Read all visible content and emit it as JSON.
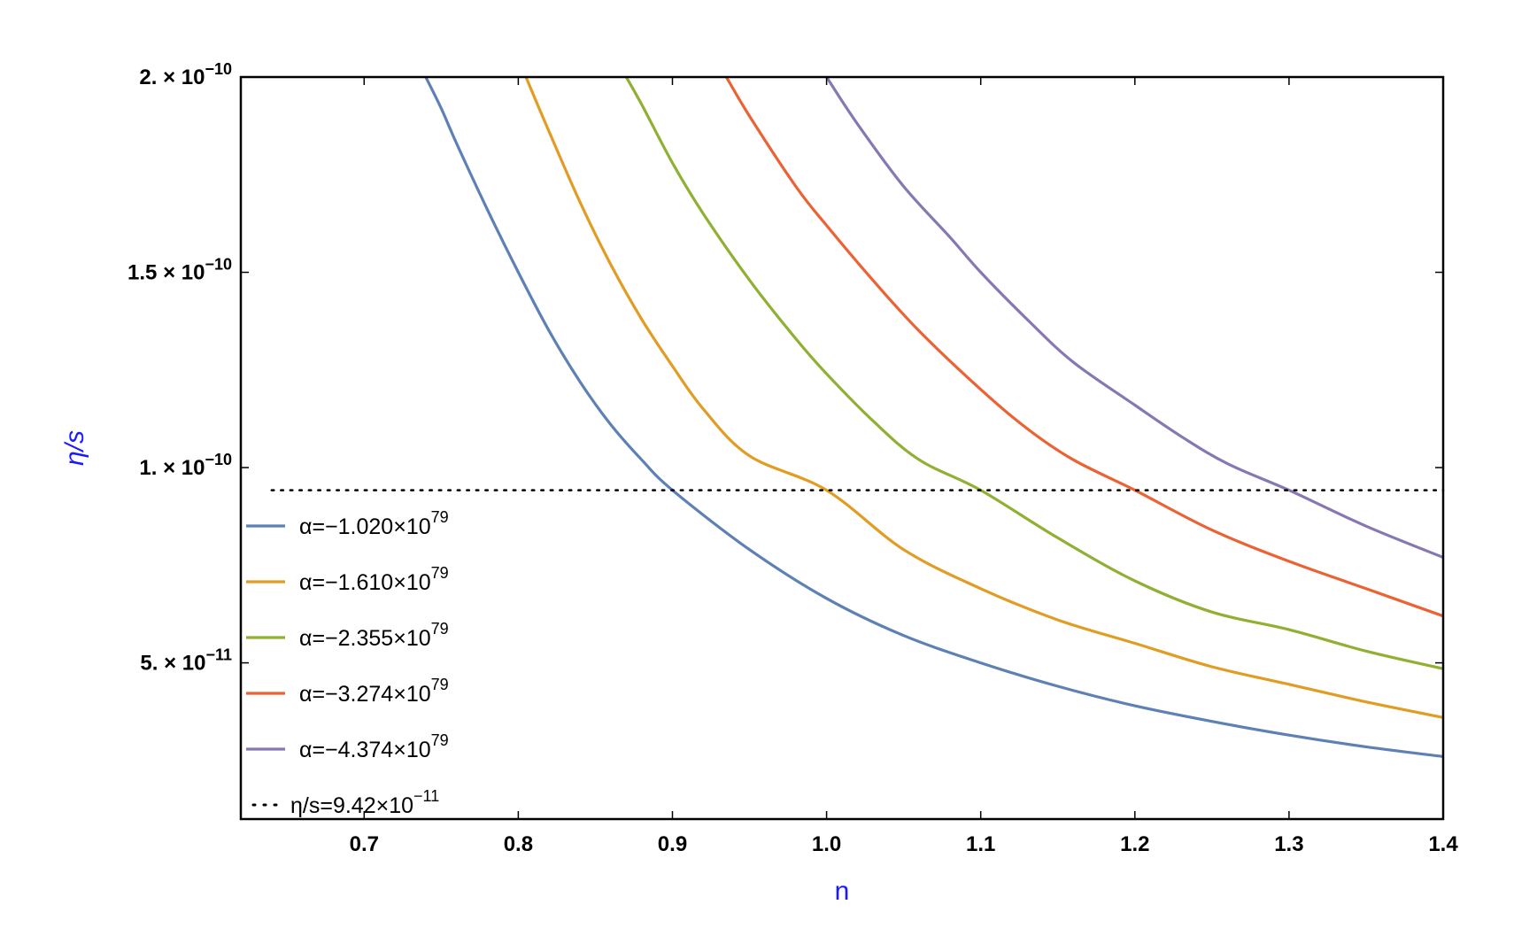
{
  "chart_data": {
    "type": "line",
    "title": "",
    "xlabel": "n",
    "ylabel": "η/s",
    "xlim": [
      0.62,
      1.4
    ],
    "ylim": [
      1e-11,
      2e-10
    ],
    "x_ticks": [
      {
        "value": 0.7,
        "label": "0.7"
      },
      {
        "value": 0.8,
        "label": "0.8"
      },
      {
        "value": 0.9,
        "label": "0.9"
      },
      {
        "value": 1.0,
        "label": "1.0"
      },
      {
        "value": 1.1,
        "label": "1.1"
      },
      {
        "value": 1.2,
        "label": "1.2"
      },
      {
        "value": 1.3,
        "label": "1.3"
      },
      {
        "value": 1.4,
        "label": "1.4"
      }
    ],
    "y_ticks": [
      {
        "value": 5e-11,
        "mantissa": "5.",
        "times": "×",
        "base": "10",
        "exponent": "−11"
      },
      {
        "value": 1e-10,
        "mantissa": "1.",
        "times": "×",
        "base": "10",
        "exponent": "−10"
      },
      {
        "value": 1.5e-10,
        "mantissa": "1.5",
        "times": "×",
        "base": "10",
        "exponent": "−10"
      },
      {
        "value": 2e-10,
        "mantissa": "2.",
        "times": "×",
        "base": "10",
        "exponent": "−10"
      }
    ],
    "grid": false,
    "legend_position": "bottom-left",
    "series": [
      {
        "name_base": "α=−1.020×10",
        "name_exp": "79",
        "color": "#5E81B5",
        "x": [
          0.74,
          0.75,
          0.76,
          0.78,
          0.8,
          0.82,
          0.84,
          0.86,
          0.88,
          0.9,
          0.95,
          1.0,
          1.05,
          1.1,
          1.15,
          1.2,
          1.25,
          1.3,
          1.35,
          1.4
        ],
        "y": [
          2e-10,
          1.92e-10,
          1.83e-10,
          1.66e-10,
          1.5e-10,
          1.35e-10,
          1.22e-10,
          1.11e-10,
          1.02e-10,
          9.42e-11,
          7.9e-11,
          6.65e-11,
          5.7e-11,
          5e-11,
          4.4e-11,
          3.9e-11,
          3.5e-11,
          3.15e-11,
          2.85e-11,
          2.6e-11
        ]
      },
      {
        "name_base": "α=−1.610×10",
        "name_exp": "79",
        "color": "#E19C24",
        "x": [
          0.805,
          0.82,
          0.84,
          0.86,
          0.88,
          0.9,
          0.92,
          0.95,
          1.0,
          1.05,
          1.1,
          1.15,
          1.2,
          1.25,
          1.3,
          1.35,
          1.4
        ],
        "y": [
          2e-10,
          1.86e-10,
          1.68e-10,
          1.52e-10,
          1.38e-10,
          1.26e-10,
          1.15e-10,
          1.03e-10,
          9.42e-11,
          7.9e-11,
          6.9e-11,
          6.1e-11,
          5.5e-11,
          4.9e-11,
          4.45e-11,
          4e-11,
          3.6e-11
        ]
      },
      {
        "name_base": "α=−2.355×10",
        "name_exp": "79",
        "color": "#8FB032",
        "x": [
          0.87,
          0.88,
          0.9,
          0.92,
          0.95,
          0.98,
          1.0,
          1.03,
          1.06,
          1.1,
          1.15,
          1.2,
          1.25,
          1.3,
          1.35,
          1.4
        ],
        "y": [
          2e-10,
          1.93e-10,
          1.78e-10,
          1.65e-10,
          1.48e-10,
          1.33e-10,
          1.24e-10,
          1.12e-10,
          1.02e-10,
          9.42e-11,
          8.2e-11,
          7.1e-11,
          6.3e-11,
          5.85e-11,
          5.3e-11,
          4.85e-11
        ]
      },
      {
        "name_base": "α=−3.274×10",
        "name_exp": "79",
        "color": "#EB6235",
        "x": [
          0.935,
          0.95,
          0.98,
          1.0,
          1.03,
          1.06,
          1.1,
          1.13,
          1.16,
          1.2,
          1.25,
          1.3,
          1.35,
          1.4
        ],
        "y": [
          2e-10,
          1.9e-10,
          1.72e-10,
          1.62e-10,
          1.48e-10,
          1.35e-10,
          1.2e-10,
          1.1e-10,
          1.02e-10,
          9.42e-11,
          8.4e-11,
          7.6e-11,
          6.9e-11,
          6.2e-11
        ]
      },
      {
        "name_base": "α=−4.374×10",
        "name_exp": "79",
        "color": "#8778B3",
        "x": [
          1.0,
          1.02,
          1.05,
          1.08,
          1.1,
          1.13,
          1.16,
          1.2,
          1.23,
          1.26,
          1.3,
          1.35,
          1.4
        ],
        "y": [
          2e-10,
          1.88e-10,
          1.72e-10,
          1.59e-10,
          1.5e-10,
          1.38e-10,
          1.27e-10,
          1.16e-10,
          1.08e-10,
          1.01e-10,
          9.42e-11,
          8.5e-11,
          7.7e-11
        ]
      }
    ],
    "reference_line": {
      "name_base": "η/s=9.42×10",
      "name_exp": "−11",
      "y": 9.42e-11,
      "x_start": 0.64,
      "x_end": 1.4,
      "color": "#000000",
      "style": "dotted"
    }
  }
}
